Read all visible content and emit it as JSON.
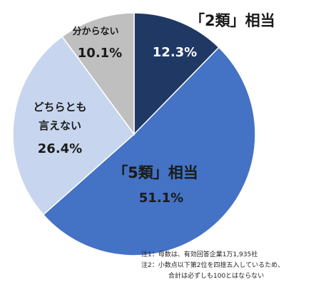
{
  "chart_data": {
    "type": "pie",
    "start_angle_deg": 0,
    "direction": "clockwise",
    "slices": [
      {
        "label": "「2類」相当",
        "value": 12.3,
        "value_text": "12.3%",
        "color": "#1f3864"
      },
      {
        "label": "「5類」相当",
        "value": 51.1,
        "value_text": "51.1%",
        "color": "#4472c4"
      },
      {
        "label": "どちらとも言えない",
        "label_lines": [
          "どちらとも",
          "言えない"
        ],
        "value": 26.4,
        "value_text": "26.4%",
        "color": "#c7d6ee"
      },
      {
        "label": "分からない",
        "value": 10.1,
        "value_text": "10.1%",
        "color": "#bfbfbf"
      }
    ]
  },
  "notes": [
    "注1：母数は、有効回答企業1万1,935社",
    "注2：小数点以下第2位を四捨五入しているため、",
    "合計は必ずしも100とはならない"
  ]
}
